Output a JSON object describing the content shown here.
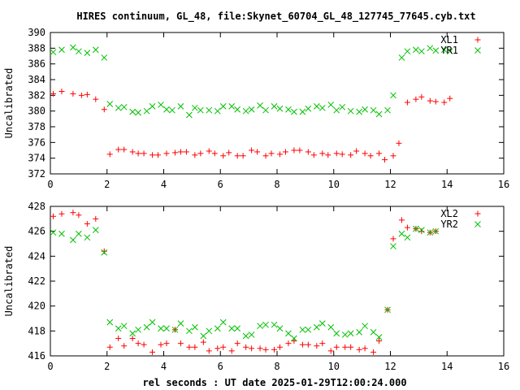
{
  "title": "HIRES continuum, GL_48, file:Skynet_60704_GL_48_127745_77645.cyb.txt",
  "xlabel": "rel seconds : UT date 2025-01-29T12:00:24.000",
  "colors": {
    "series_red": "#ff0000",
    "series_green": "#00c000",
    "axis": "#000000"
  },
  "chart_data": [
    {
      "type": "scatter",
      "ylabel": "Uncalibrated",
      "xlim": [
        0,
        16
      ],
      "ylim": [
        372,
        390
      ],
      "xticks": [
        "0",
        "2",
        "4",
        "6",
        "8",
        "10",
        "12",
        "14",
        "16"
      ],
      "yticks": [
        "372",
        "374",
        "376",
        "378",
        "380",
        "382",
        "384",
        "386",
        "388",
        "390"
      ],
      "legend_position": "top-right",
      "grid": false,
      "series": [
        {
          "name": "XL1",
          "marker": "+",
          "color": "#ff0000",
          "points": [
            [
              0.1,
              382.2
            ],
            [
              0.4,
              382.5
            ],
            [
              0.8,
              382.2
            ],
            [
              1.1,
              382.0
            ],
            [
              1.3,
              382.1
            ],
            [
              1.6,
              381.5
            ],
            [
              1.9,
              380.2
            ],
            [
              2.1,
              374.5
            ],
            [
              2.4,
              375.1
            ],
            [
              2.6,
              375.1
            ],
            [
              2.9,
              374.8
            ],
            [
              3.1,
              374.6
            ],
            [
              3.3,
              374.6
            ],
            [
              3.6,
              374.4
            ],
            [
              3.8,
              374.4
            ],
            [
              4.1,
              374.6
            ],
            [
              4.4,
              374.7
            ],
            [
              4.6,
              374.8
            ],
            [
              4.8,
              374.8
            ],
            [
              5.1,
              374.4
            ],
            [
              5.3,
              374.6
            ],
            [
              5.6,
              374.9
            ],
            [
              5.8,
              374.6
            ],
            [
              6.1,
              374.3
            ],
            [
              6.3,
              374.7
            ],
            [
              6.6,
              374.3
            ],
            [
              6.8,
              374.3
            ],
            [
              7.1,
              375.0
            ],
            [
              7.3,
              374.8
            ],
            [
              7.6,
              374.3
            ],
            [
              7.8,
              374.6
            ],
            [
              8.1,
              374.5
            ],
            [
              8.3,
              374.8
            ],
            [
              8.6,
              375.0
            ],
            [
              8.8,
              375.0
            ],
            [
              9.1,
              374.8
            ],
            [
              9.3,
              374.4
            ],
            [
              9.6,
              374.6
            ],
            [
              9.8,
              374.4
            ],
            [
              10.1,
              374.6
            ],
            [
              10.3,
              374.5
            ],
            [
              10.6,
              374.4
            ],
            [
              10.8,
              374.9
            ],
            [
              11.1,
              374.6
            ],
            [
              11.3,
              374.3
            ],
            [
              11.6,
              374.6
            ],
            [
              11.8,
              373.8
            ],
            [
              12.1,
              374.3
            ],
            [
              12.3,
              375.9
            ],
            [
              12.6,
              381.1
            ],
            [
              12.9,
              381.5
            ],
            [
              13.1,
              381.8
            ],
            [
              13.4,
              381.3
            ],
            [
              13.6,
              381.2
            ],
            [
              13.9,
              381.1
            ],
            [
              14.1,
              381.6
            ]
          ]
        },
        {
          "name": "YR1",
          "marker": "x",
          "color": "#00c000",
          "points": [
            [
              0.1,
              387.5
            ],
            [
              0.4,
              387.8
            ],
            [
              0.8,
              388.1
            ],
            [
              1.0,
              387.6
            ],
            [
              1.3,
              387.4
            ],
            [
              1.6,
              387.8
            ],
            [
              1.9,
              386.8
            ],
            [
              2.1,
              380.9
            ],
            [
              2.4,
              380.4
            ],
            [
              2.6,
              380.5
            ],
            [
              2.9,
              379.9
            ],
            [
              3.1,
              379.8
            ],
            [
              3.4,
              380.0
            ],
            [
              3.6,
              380.6
            ],
            [
              3.9,
              380.8
            ],
            [
              4.1,
              380.2
            ],
            [
              4.3,
              380.1
            ],
            [
              4.6,
              380.6
            ],
            [
              4.9,
              379.5
            ],
            [
              5.1,
              380.4
            ],
            [
              5.3,
              380.1
            ],
            [
              5.6,
              380.1
            ],
            [
              5.9,
              380.0
            ],
            [
              6.1,
              380.6
            ],
            [
              6.4,
              380.6
            ],
            [
              6.6,
              380.2
            ],
            [
              6.9,
              380.0
            ],
            [
              7.1,
              380.2
            ],
            [
              7.4,
              380.7
            ],
            [
              7.6,
              380.1
            ],
            [
              7.9,
              380.6
            ],
            [
              8.1,
              380.3
            ],
            [
              8.4,
              380.2
            ],
            [
              8.6,
              379.9
            ],
            [
              8.9,
              379.9
            ],
            [
              9.1,
              380.3
            ],
            [
              9.4,
              380.6
            ],
            [
              9.6,
              380.4
            ],
            [
              9.9,
              380.8
            ],
            [
              10.1,
              380.1
            ],
            [
              10.3,
              380.5
            ],
            [
              10.6,
              380.0
            ],
            [
              10.9,
              379.9
            ],
            [
              11.1,
              380.2
            ],
            [
              11.4,
              380.1
            ],
            [
              11.6,
              379.6
            ],
            [
              11.9,
              380.1
            ],
            [
              12.1,
              382.0
            ],
            [
              12.4,
              386.8
            ],
            [
              12.6,
              387.6
            ],
            [
              12.9,
              387.8
            ],
            [
              13.1,
              387.6
            ],
            [
              13.4,
              388.0
            ],
            [
              13.6,
              387.7
            ],
            [
              13.9,
              387.8
            ],
            [
              14.1,
              387.6
            ]
          ]
        }
      ]
    },
    {
      "type": "scatter",
      "ylabel": "Uncalibrated",
      "xlim": [
        0,
        16
      ],
      "ylim": [
        416,
        428
      ],
      "xticks": [
        "0",
        "2",
        "4",
        "6",
        "8",
        "10",
        "12",
        "14",
        "16"
      ],
      "yticks": [
        "416",
        "418",
        "420",
        "422",
        "424",
        "426",
        "428"
      ],
      "legend_position": "top-right",
      "grid": false,
      "series": [
        {
          "name": "XL2",
          "marker": "+",
          "color": "#ff0000",
          "points": [
            [
              0.1,
              427.2
            ],
            [
              0.4,
              427.4
            ],
            [
              0.8,
              427.5
            ],
            [
              1.0,
              427.3
            ],
            [
              1.3,
              426.6
            ],
            [
              1.6,
              427.0
            ],
            [
              1.9,
              424.4
            ],
            [
              2.1,
              416.7
            ],
            [
              2.4,
              417.4
            ],
            [
              2.6,
              416.8
            ],
            [
              2.9,
              417.4
            ],
            [
              3.1,
              417.0
            ],
            [
              3.3,
              416.9
            ],
            [
              3.6,
              416.3
            ],
            [
              3.9,
              416.9
            ],
            [
              4.1,
              417.0
            ],
            [
              4.4,
              418.1
            ],
            [
              4.6,
              417.0
            ],
            [
              4.9,
              416.7
            ],
            [
              5.1,
              416.7
            ],
            [
              5.4,
              417.1
            ],
            [
              5.6,
              416.4
            ],
            [
              5.9,
              416.6
            ],
            [
              6.1,
              416.7
            ],
            [
              6.4,
              416.4
            ],
            [
              6.6,
              417.0
            ],
            [
              6.9,
              416.7
            ],
            [
              7.1,
              416.6
            ],
            [
              7.4,
              416.6
            ],
            [
              7.6,
              416.5
            ],
            [
              7.9,
              416.5
            ],
            [
              8.1,
              416.7
            ],
            [
              8.4,
              417.0
            ],
            [
              8.6,
              417.2
            ],
            [
              8.9,
              416.9
            ],
            [
              9.1,
              416.9
            ],
            [
              9.4,
              416.8
            ],
            [
              9.6,
              417.0
            ],
            [
              9.9,
              416.4
            ],
            [
              10.1,
              416.7
            ],
            [
              10.4,
              416.7
            ],
            [
              10.6,
              416.7
            ],
            [
              10.9,
              416.5
            ],
            [
              11.1,
              416.6
            ],
            [
              11.4,
              416.3
            ],
            [
              11.6,
              417.2
            ],
            [
              11.9,
              419.7
            ],
            [
              12.1,
              425.4
            ],
            [
              12.4,
              426.9
            ],
            [
              12.6,
              426.3
            ],
            [
              12.9,
              426.2
            ],
            [
              13.1,
              426.0
            ],
            [
              13.4,
              425.9
            ],
            [
              13.6,
              426.0
            ]
          ]
        },
        {
          "name": "YR2",
          "marker": "x",
          "color": "#00c000",
          "points": [
            [
              0.1,
              425.9
            ],
            [
              0.4,
              425.8
            ],
            [
              0.8,
              425.3
            ],
            [
              1.0,
              425.8
            ],
            [
              1.3,
              425.5
            ],
            [
              1.6,
              426.1
            ],
            [
              1.9,
              424.3
            ],
            [
              2.1,
              418.7
            ],
            [
              2.4,
              418.2
            ],
            [
              2.6,
              418.4
            ],
            [
              2.9,
              417.8
            ],
            [
              3.1,
              418.1
            ],
            [
              3.4,
              418.3
            ],
            [
              3.6,
              418.7
            ],
            [
              3.9,
              418.2
            ],
            [
              4.1,
              418.2
            ],
            [
              4.4,
              418.1
            ],
            [
              4.6,
              418.6
            ],
            [
              4.9,
              418.0
            ],
            [
              5.1,
              418.3
            ],
            [
              5.4,
              417.6
            ],
            [
              5.6,
              418.0
            ],
            [
              5.9,
              418.2
            ],
            [
              6.1,
              418.7
            ],
            [
              6.4,
              418.2
            ],
            [
              6.6,
              418.2
            ],
            [
              6.9,
              417.6
            ],
            [
              7.1,
              417.7
            ],
            [
              7.4,
              418.4
            ],
            [
              7.6,
              418.5
            ],
            [
              7.9,
              418.5
            ],
            [
              8.1,
              418.2
            ],
            [
              8.4,
              417.8
            ],
            [
              8.6,
              417.4
            ],
            [
              8.9,
              418.1
            ],
            [
              9.1,
              418.1
            ],
            [
              9.4,
              418.3
            ],
            [
              9.6,
              418.6
            ],
            [
              9.9,
              418.3
            ],
            [
              10.1,
              417.8
            ],
            [
              10.4,
              417.7
            ],
            [
              10.6,
              417.8
            ],
            [
              10.9,
              417.9
            ],
            [
              11.1,
              418.4
            ],
            [
              11.4,
              417.9
            ],
            [
              11.6,
              417.5
            ],
            [
              11.9,
              419.7
            ],
            [
              12.1,
              424.8
            ],
            [
              12.4,
              425.8
            ],
            [
              12.6,
              425.5
            ],
            [
              12.9,
              426.2
            ],
            [
              13.1,
              426.1
            ],
            [
              13.4,
              425.9
            ],
            [
              13.6,
              426.0
            ]
          ]
        }
      ]
    }
  ]
}
